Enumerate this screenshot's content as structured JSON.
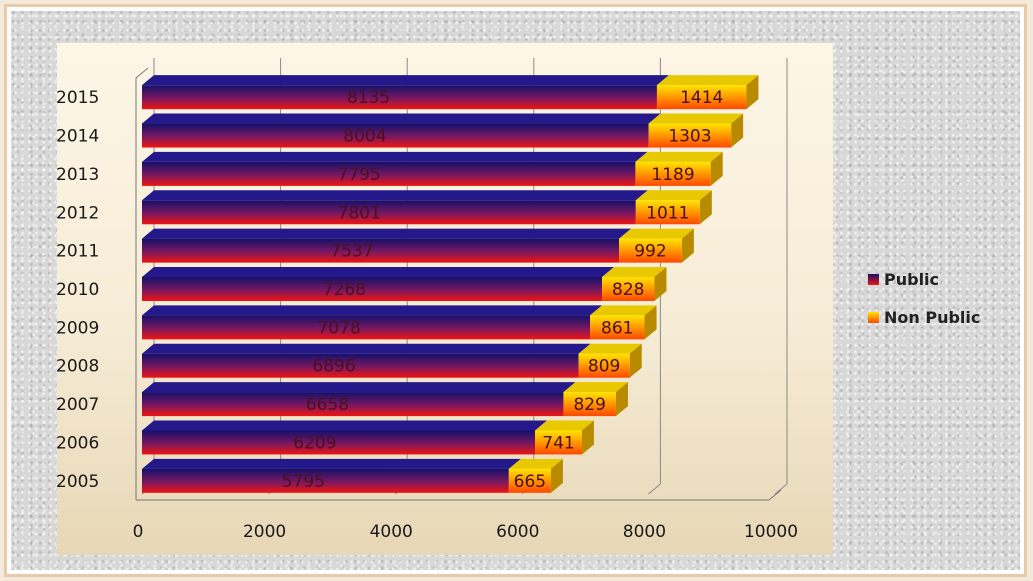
{
  "chart_data": {
    "type": "bar",
    "orientation": "horizontal",
    "stacked": true,
    "categories": [
      "2015",
      "2014",
      "2013",
      "2012",
      "2011",
      "2010",
      "2009",
      "2008",
      "2007",
      "2006",
      "2005"
    ],
    "series": [
      {
        "name": "Public",
        "values": [
          8135,
          8004,
          7795,
          7801,
          7537,
          7268,
          7078,
          6896,
          6658,
          6209,
          5795
        ]
      },
      {
        "name": "Non Public",
        "values": [
          1414,
          1303,
          1189,
          1011,
          992,
          828,
          861,
          809,
          829,
          741,
          665
        ]
      }
    ],
    "x_ticks": [
      "0",
      "2000",
      "4000",
      "6000",
      "8000",
      "10000"
    ],
    "xlim": [
      0,
      10000
    ],
    "grid": true,
    "legend_position": "right",
    "colors": {
      "public_top": "#1a1470",
      "public_mid": "#7a1860",
      "public_bottom": "#e81418",
      "nonpublic_top": "#ffe000",
      "nonpublic_bottom": "#ff4a00",
      "nonpublic_3d": "#c8a000"
    }
  },
  "legend": [
    {
      "label": "Public"
    },
    {
      "label": "Non Public"
    }
  ]
}
